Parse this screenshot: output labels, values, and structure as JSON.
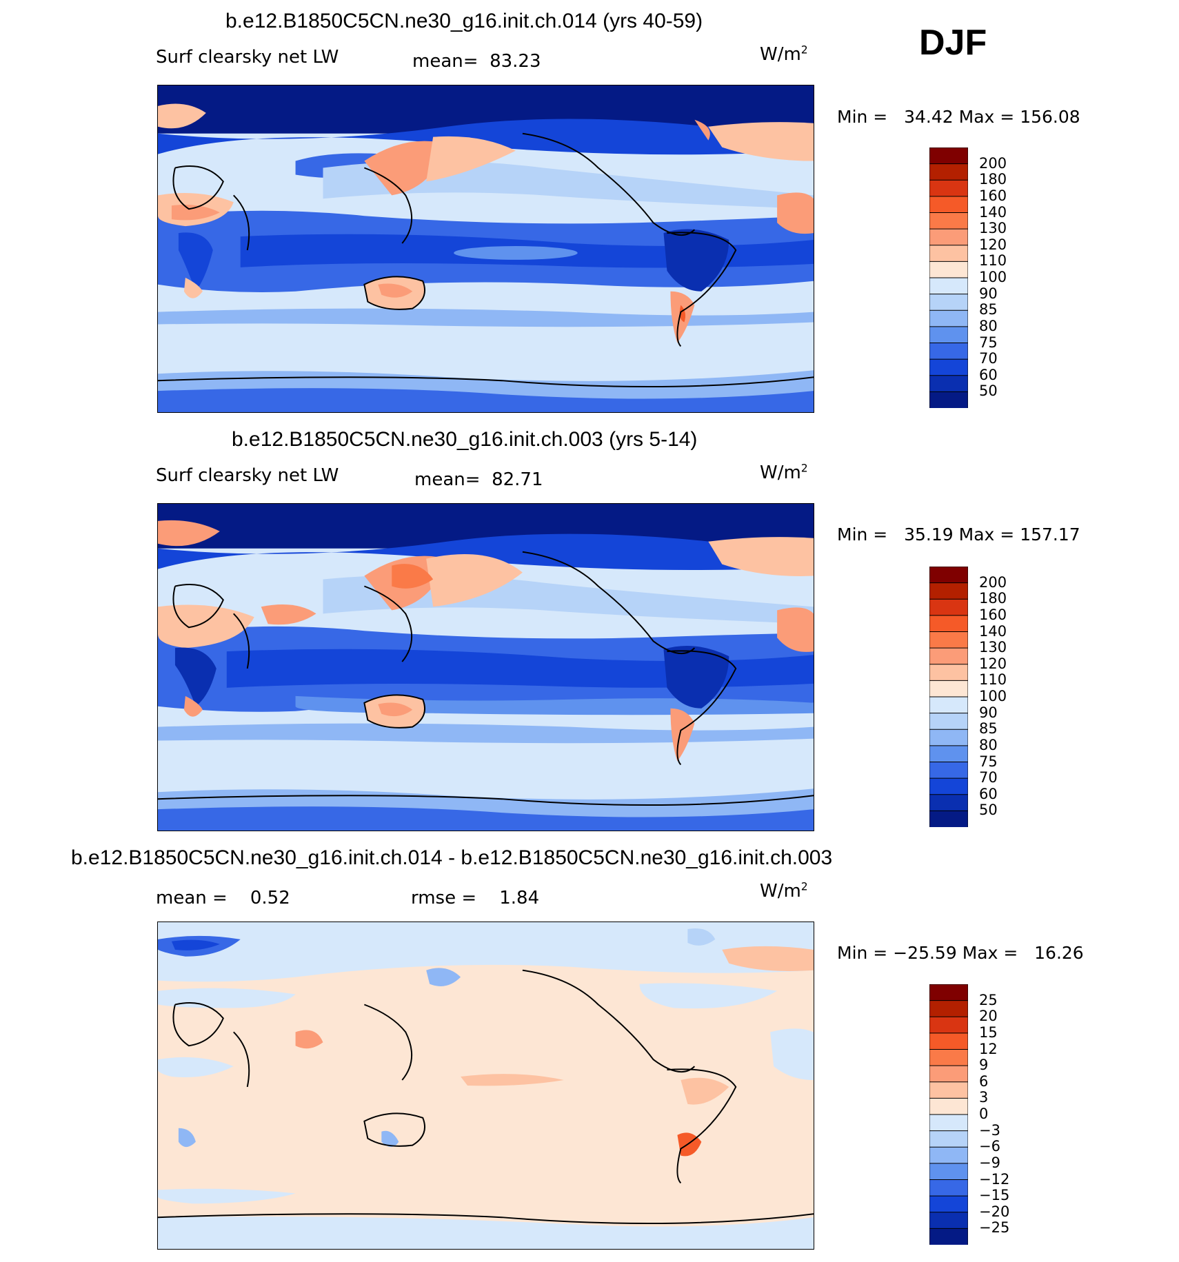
{
  "season": "DJF",
  "units_base": "W/m",
  "units_exp": "2",
  "panels": [
    {
      "title": "b.e12.B1850C5CN.ne30_g16.init.ch.014 (yrs 40-59)",
      "variable": "Surf clearsky net LW",
      "stat1_label": "mean=",
      "stat1_value": "83.23",
      "min_label": "Min =",
      "min_value": "34.42",
      "max_label": "Max =",
      "max_value": "156.08",
      "levels": [
        "200",
        "180",
        "160",
        "140",
        "130",
        "120",
        "110",
        "100",
        "90",
        "85",
        "80",
        "75",
        "70",
        "60",
        "50"
      ],
      "colors": [
        "#7f0000",
        "#b32000",
        "#d93512",
        "#f55a28",
        "#fa7a48",
        "#fb9c78",
        "#fdc2a2",
        "#fde6d4",
        "#d6e8fb",
        "#b6d3f8",
        "#8fb7f5",
        "#5f92ee",
        "#3768e6",
        "#1445d8",
        "#0a2fb0",
        "#041a85"
      ],
      "map_legend": {
        "background": "#d6e8fb",
        "land_warm": "#fb9c78",
        "ocean_deep": "#1445d8",
        "polar": "#041a85"
      }
    },
    {
      "title": "b.e12.B1850C5CN.ne30_g16.init.ch.003 (yrs 5-14)",
      "variable": "Surf clearsky net LW",
      "stat1_label": "mean=",
      "stat1_value": "82.71",
      "min_label": "Min =",
      "min_value": "35.19",
      "max_label": "Max =",
      "max_value": "157.17",
      "levels": [
        "200",
        "180",
        "160",
        "140",
        "130",
        "120",
        "110",
        "100",
        "90",
        "85",
        "80",
        "75",
        "70",
        "60",
        "50"
      ],
      "colors": [
        "#7f0000",
        "#b32000",
        "#d93512",
        "#f55a28",
        "#fa7a48",
        "#fb9c78",
        "#fdc2a2",
        "#fde6d4",
        "#d6e8fb",
        "#b6d3f8",
        "#8fb7f5",
        "#5f92ee",
        "#3768e6",
        "#1445d8",
        "#0a2fb0",
        "#041a85"
      ]
    },
    {
      "title": "b.e12.B1850C5CN.ne30_g16.init.ch.014 - b.e12.B1850C5CN.ne30_g16.init.ch.003",
      "stat1_label": "mean =",
      "stat1_value": "0.52",
      "stat2_label": "rmse =",
      "stat2_value": "1.84",
      "min_label": "Min =",
      "min_value": "−25.59",
      "max_label": "Max =",
      "max_value": "16.26",
      "levels": [
        "25",
        "20",
        "15",
        "12",
        "9",
        "6",
        "3",
        "0",
        "−3",
        "−6",
        "−9",
        "−12",
        "−15",
        "−20",
        "−25"
      ],
      "colors": [
        "#7f0000",
        "#b32000",
        "#d93512",
        "#f55a28",
        "#fa7a48",
        "#fb9c78",
        "#fdc2a2",
        "#fde6d4",
        "#d6e8fb",
        "#b6d3f8",
        "#8fb7f5",
        "#5f92ee",
        "#3768e6",
        "#1445d8",
        "#0a2fb0",
        "#041a85"
      ]
    }
  ]
}
